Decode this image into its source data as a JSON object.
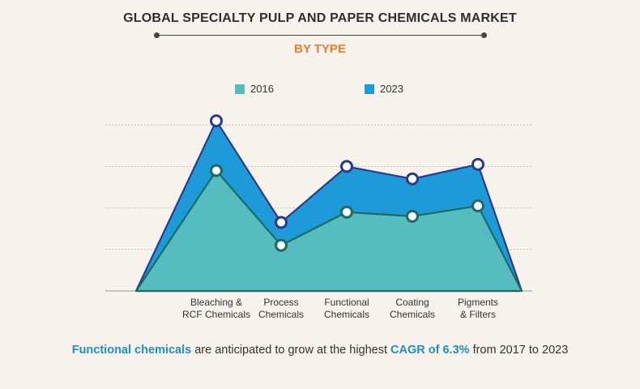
{
  "title": "GLOBAL SPECIALTY PULP AND PAPER CHEMICALS MARKET",
  "subtitle": "BY TYPE",
  "colors": {
    "series_2016": "#57bcc0",
    "series_2023": "#1e9ad9",
    "outline": "#2a3a8c",
    "outline_2016": "#1b6b60",
    "accent_orange": "#f07a28",
    "accent_blue": "#1e8ec9",
    "grid": "#bdbdbd"
  },
  "chart_data": {
    "type": "area",
    "title": "GLOBAL SPECIALTY PULP AND PAPER CHEMICALS MARKET",
    "subtitle": "BY TYPE",
    "categories": [
      "Bleaching & RCF Chemicals",
      "Process Chemicals",
      "Functional Chemicals",
      "Coating Chemicals",
      "Pigments & Filters"
    ],
    "category_lines": [
      [
        "Bleaching &",
        "RCF Chemicals"
      ],
      [
        "Process",
        "Chemicals"
      ],
      [
        "Functional",
        "Chemicals"
      ],
      [
        "Coating",
        "Chemicals"
      ],
      [
        "Pigments",
        "& Filters"
      ]
    ],
    "series": [
      {
        "name": "2016",
        "values": [
          58,
          22,
          38,
          36,
          41
        ]
      },
      {
        "name": "2023",
        "values": [
          82,
          33,
          60,
          54,
          61
        ]
      }
    ],
    "ylim": [
      0,
      100
    ],
    "gridlines": [
      20,
      40,
      60,
      80
    ],
    "grid": true,
    "xlabel": "",
    "ylabel": "",
    "legend": "top-center"
  },
  "footer": {
    "highlight1": "Functional chemicals",
    "text1": " are anticipated to grow at the highest ",
    "highlight2": "CAGR of 6.3%",
    "text2": " from 2017 to 2023"
  }
}
